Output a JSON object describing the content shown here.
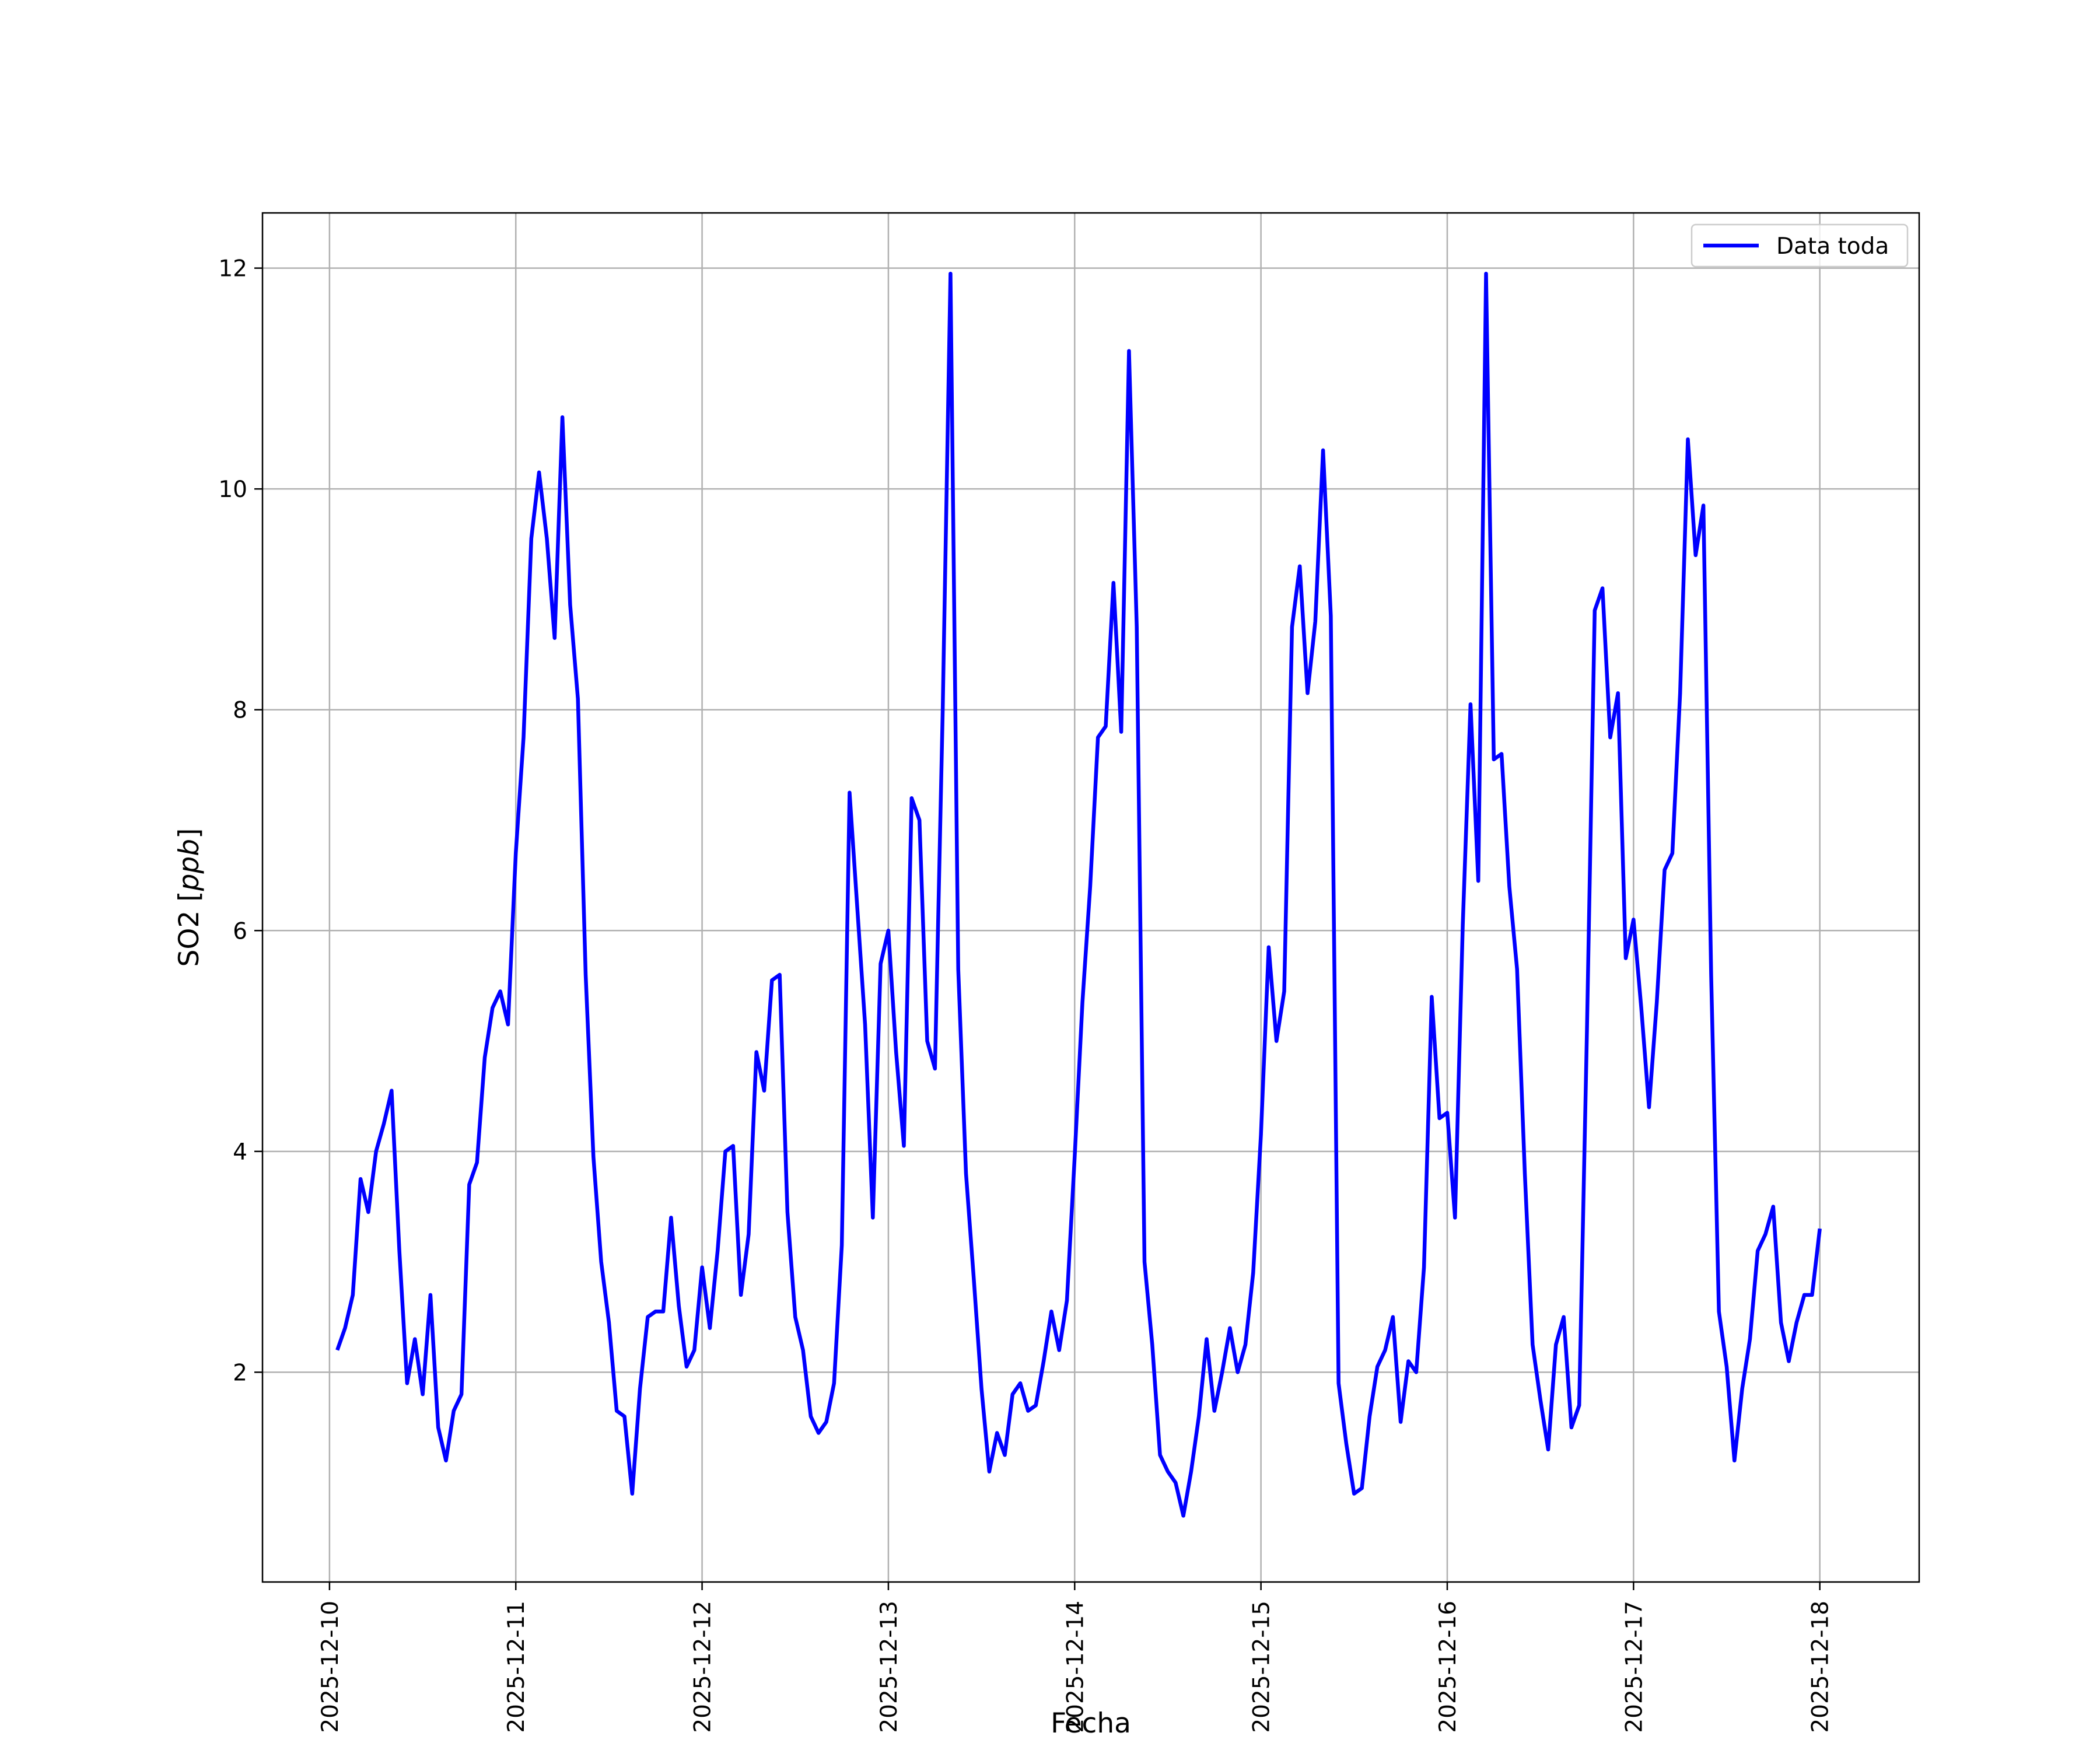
{
  "chart_data": {
    "type": "line",
    "title": "",
    "xlabel": "Fecha",
    "ylabel_plain": "SO2 [",
    "ylabel_italic": "ppb",
    "ylabel_close": "]",
    "x_tick_labels": [
      "2025-12-10",
      "2025-12-11",
      "2025-12-12",
      "2025-12-13",
      "2025-12-14",
      "2025-12-15",
      "2025-12-16",
      "2025-12-17",
      "2025-12-18"
    ],
    "y_ticks": [
      2,
      4,
      6,
      8,
      10,
      12
    ],
    "xlim": [
      "2025-12-09 15:22",
      "2025-12-18 12:48"
    ],
    "ylim": [
      0.1,
      12.5
    ],
    "grid": true,
    "legend_position": "top-right",
    "colors": {
      "series": "#0000ff",
      "grid": "#b0b0b0",
      "axes": "#000000"
    },
    "series": [
      {
        "name": "Data toda",
        "x": [
          "2025-12-10 01:00",
          "2025-12-10 02:00",
          "2025-12-10 03:00",
          "2025-12-10 04:00",
          "2025-12-10 05:00",
          "2025-12-10 06:00",
          "2025-12-10 07:00",
          "2025-12-10 08:00",
          "2025-12-10 09:00",
          "2025-12-10 10:00",
          "2025-12-10 11:00",
          "2025-12-10 12:00",
          "2025-12-10 13:00",
          "2025-12-10 14:00",
          "2025-12-10 15:00",
          "2025-12-10 16:00",
          "2025-12-10 17:00",
          "2025-12-10 18:00",
          "2025-12-10 19:00",
          "2025-12-10 20:00",
          "2025-12-10 21:00",
          "2025-12-10 22:00",
          "2025-12-10 23:00",
          "2025-12-11 00:00",
          "2025-12-11 01:00",
          "2025-12-11 02:00",
          "2025-12-11 03:00",
          "2025-12-11 04:00",
          "2025-12-11 05:00",
          "2025-12-11 06:00",
          "2025-12-11 07:00",
          "2025-12-11 08:00",
          "2025-12-11 09:00",
          "2025-12-11 10:00",
          "2025-12-11 11:00",
          "2025-12-11 12:00",
          "2025-12-11 13:00",
          "2025-12-11 14:00",
          "2025-12-11 15:00",
          "2025-12-11 16:00",
          "2025-12-11 17:00",
          "2025-12-11 18:00",
          "2025-12-11 19:00",
          "2025-12-11 20:00",
          "2025-12-11 21:00",
          "2025-12-11 22:00",
          "2025-12-11 23:00",
          "2025-12-12 00:00",
          "2025-12-12 01:00",
          "2025-12-12 02:00",
          "2025-12-12 03:00",
          "2025-12-12 04:00",
          "2025-12-12 05:00",
          "2025-12-12 06:00",
          "2025-12-12 07:00",
          "2025-12-12 08:00",
          "2025-12-12 09:00",
          "2025-12-12 10:00",
          "2025-12-12 11:00",
          "2025-12-12 12:00",
          "2025-12-12 13:00",
          "2025-12-12 14:00",
          "2025-12-12 15:00",
          "2025-12-12 16:00",
          "2025-12-12 17:00",
          "2025-12-12 18:00",
          "2025-12-12 19:00",
          "2025-12-12 20:00",
          "2025-12-12 21:00",
          "2025-12-12 22:00",
          "2025-12-12 23:00",
          "2025-12-13 00:00",
          "2025-12-13 01:00",
          "2025-12-13 02:00",
          "2025-12-13 03:00",
          "2025-12-13 04:00",
          "2025-12-13 05:00",
          "2025-12-13 06:00",
          "2025-12-13 07:00",
          "2025-12-13 08:00",
          "2025-12-13 09:00",
          "2025-12-13 10:00",
          "2025-12-13 11:00",
          "2025-12-13 12:00",
          "2025-12-13 13:00",
          "2025-12-13 14:00",
          "2025-12-13 15:00",
          "2025-12-13 16:00",
          "2025-12-13 17:00",
          "2025-12-13 18:00",
          "2025-12-13 19:00",
          "2025-12-13 20:00",
          "2025-12-13 21:00",
          "2025-12-13 22:00",
          "2025-12-13 23:00",
          "2025-12-14 00:00",
          "2025-12-14 01:00",
          "2025-12-14 02:00",
          "2025-12-14 03:00",
          "2025-12-14 04:00",
          "2025-12-14 05:00",
          "2025-12-14 06:00",
          "2025-12-14 07:00",
          "2025-12-14 08:00",
          "2025-12-14 09:00",
          "2025-12-14 10:00",
          "2025-12-14 11:00",
          "2025-12-14 12:00",
          "2025-12-14 13:00",
          "2025-12-14 14:00",
          "2025-12-14 15:00",
          "2025-12-14 16:00",
          "2025-12-14 17:00",
          "2025-12-14 18:00",
          "2025-12-14 19:00",
          "2025-12-14 20:00",
          "2025-12-14 21:00",
          "2025-12-14 22:00",
          "2025-12-14 23:00",
          "2025-12-15 00:00",
          "2025-12-15 01:00",
          "2025-12-15 02:00",
          "2025-12-15 03:00",
          "2025-12-15 04:00",
          "2025-12-15 05:00",
          "2025-12-15 06:00",
          "2025-12-15 07:00",
          "2025-12-15 08:00",
          "2025-12-15 09:00",
          "2025-12-15 10:00",
          "2025-12-15 11:00",
          "2025-12-15 12:00",
          "2025-12-15 13:00",
          "2025-12-15 14:00",
          "2025-12-15 15:00",
          "2025-12-15 16:00",
          "2025-12-15 17:00",
          "2025-12-15 18:00",
          "2025-12-15 19:00",
          "2025-12-15 20:00",
          "2025-12-15 21:00",
          "2025-12-15 22:00",
          "2025-12-15 23:00",
          "2025-12-16 00:00",
          "2025-12-16 01:00",
          "2025-12-16 02:00",
          "2025-12-16 03:00",
          "2025-12-16 04:00",
          "2025-12-16 05:00",
          "2025-12-16 06:00",
          "2025-12-16 07:00",
          "2025-12-16 08:00",
          "2025-12-16 09:00",
          "2025-12-16 10:00",
          "2025-12-16 11:00",
          "2025-12-16 12:00",
          "2025-12-16 13:00",
          "2025-12-16 14:00",
          "2025-12-16 15:00",
          "2025-12-16 16:00",
          "2025-12-16 17:00",
          "2025-12-16 18:00",
          "2025-12-16 19:00",
          "2025-12-16 20:00",
          "2025-12-16 21:00",
          "2025-12-16 22:00",
          "2025-12-16 23:00",
          "2025-12-17 00:00",
          "2025-12-17 01:00",
          "2025-12-17 02:00",
          "2025-12-17 03:00",
          "2025-12-17 04:00",
          "2025-12-17 05:00",
          "2025-12-17 06:00",
          "2025-12-17 07:00",
          "2025-12-17 08:00",
          "2025-12-17 09:00",
          "2025-12-17 10:00",
          "2025-12-17 11:00",
          "2025-12-17 12:00",
          "2025-12-17 13:00",
          "2025-12-17 14:00",
          "2025-12-17 15:00",
          "2025-12-17 16:00",
          "2025-12-17 17:00",
          "2025-12-17 18:00",
          "2025-12-17 19:00",
          "2025-12-17 20:00",
          "2025-12-17 21:00",
          "2025-12-17 22:00",
          "2025-12-17 23:00",
          "2025-12-18 00:00"
        ],
        "y": [
          2.2,
          2.4,
          2.7,
          3.75,
          3.45,
          4.0,
          4.25,
          4.55,
          3.1,
          1.9,
          2.3,
          1.8,
          2.7,
          1.5,
          1.2,
          1.65,
          1.8,
          3.7,
          3.9,
          4.85,
          5.3,
          5.45,
          5.15,
          6.7,
          7.75,
          9.55,
          10.15,
          9.55,
          8.65,
          10.65,
          8.95,
          8.1,
          5.6,
          3.95,
          3.0,
          2.45,
          1.65,
          1.6,
          0.9,
          1.85,
          2.5,
          2.55,
          2.55,
          3.4,
          2.6,
          2.05,
          2.2,
          2.95,
          2.4,
          3.1,
          4.0,
          4.05,
          2.7,
          3.25,
          4.9,
          4.55,
          5.55,
          5.6,
          3.45,
          2.5,
          2.2,
          1.6,
          1.45,
          1.55,
          1.9,
          3.15,
          7.25,
          6.2,
          5.15,
          3.4,
          5.7,
          6.0,
          4.9,
          4.05,
          7.2,
          7.0,
          5.0,
          4.75,
          8.0,
          11.95,
          5.65,
          3.8,
          2.85,
          1.85,
          1.1,
          1.45,
          1.25,
          1.8,
          1.9,
          1.65,
          1.7,
          2.1,
          2.55,
          2.2,
          2.65,
          3.95,
          5.35,
          6.4,
          7.75,
          7.85,
          9.15,
          7.8,
          11.25,
          8.75,
          3.0,
          2.25,
          1.25,
          1.1,
          1.0,
          0.7,
          1.1,
          1.6,
          2.3,
          1.65,
          2.0,
          2.4,
          2.0,
          2.25,
          2.9,
          4.15,
          5.85,
          5.0,
          5.45,
          8.75,
          9.3,
          8.15,
          8.8,
          10.35,
          8.85,
          1.9,
          1.35,
          0.9,
          0.95,
          1.6,
          2.05,
          2.2,
          2.5,
          1.55,
          2.1,
          2.0,
          2.95,
          5.4,
          4.3,
          4.35,
          3.4,
          6.05,
          8.05,
          6.45,
          11.95,
          7.55,
          7.6,
          6.4,
          5.65,
          3.8,
          2.25,
          1.75,
          1.3,
          2.25,
          2.5,
          1.5,
          1.7,
          5.1,
          8.9,
          9.1,
          7.75,
          8.15,
          5.75,
          6.1,
          5.3,
          4.4,
          5.35,
          6.55,
          6.7,
          8.15,
          10.45,
          9.4,
          9.85,
          5.6,
          2.55,
          2.05,
          1.2,
          1.85,
          2.3,
          3.1,
          3.25,
          3.5,
          2.45,
          2.1,
          2.45,
          2.7,
          2.7,
          3.3
        ]
      }
    ]
  }
}
